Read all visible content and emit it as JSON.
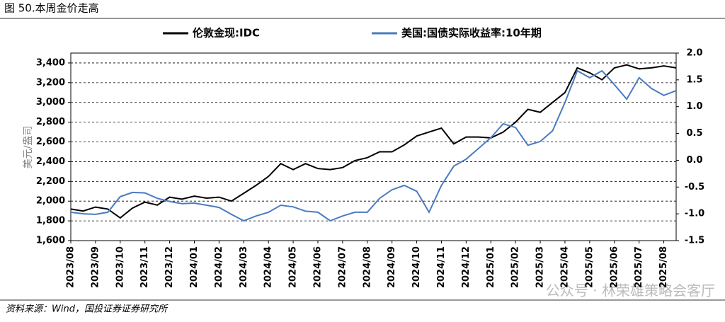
{
  "chart_data": {
    "type": "line",
    "title": "图 50.本周金价走高",
    "y_label": "美元/盎司",
    "source": "资料来源：Wind，国投证券证券研究所",
    "watermark": "公众号 · 林荣雄策略会客厅",
    "categories": [
      "2023/08",
      null,
      "2023/09",
      null,
      "2023/10",
      null,
      "2023/11",
      null,
      "2023/12",
      null,
      "2024/01",
      null,
      "2024/02",
      null,
      "2024/03",
      null,
      "2024/04",
      null,
      "2024/05",
      null,
      "2024/06",
      null,
      "2024/07",
      null,
      "2024/08",
      null,
      "2024/09",
      null,
      "2024/10",
      null,
      "2024/11",
      null,
      "2024/12",
      null,
      "2025/01",
      null,
      "2025/02",
      null,
      "2025/03",
      null,
      "2025/04",
      null,
      "2025/05",
      null,
      "2025/06",
      null,
      "2025/07",
      null,
      "2025/08",
      null
    ],
    "series": [
      {
        "name": "伦敦金现:IDC",
        "color": "#000000",
        "axis": "y",
        "values": [
          1920,
          1900,
          1940,
          1920,
          1830,
          1930,
          1990,
          1960,
          2040,
          2020,
          2050,
          2030,
          2040,
          2000,
          2080,
          2160,
          2250,
          2380,
          2320,
          2380,
          2330,
          2320,
          2340,
          2410,
          2440,
          2500,
          2500,
          2570,
          2660,
          2700,
          2740,
          2580,
          2650,
          2650,
          2640,
          2700,
          2800,
          2930,
          2900,
          3000,
          3100,
          3350,
          3300,
          3230,
          3350,
          3380,
          3340,
          3350,
          3370,
          3350
        ]
      },
      {
        "name": "美国:国债实际收益率:10年期",
        "color": "#4a7bc2",
        "axis": "y2",
        "values": [
          -0.97,
          -1.0,
          -1.01,
          -0.97,
          -0.68,
          -0.6,
          -0.61,
          -0.71,
          -0.77,
          -0.81,
          -0.8,
          -0.84,
          -0.88,
          -1.01,
          -1.13,
          -1.04,
          -0.97,
          -0.84,
          -0.87,
          -0.95,
          -0.97,
          -1.13,
          -1.04,
          -0.97,
          -0.97,
          -0.71,
          -0.55,
          -0.47,
          -0.58,
          -0.97,
          -0.47,
          -0.11,
          0.02,
          0.22,
          0.42,
          0.68,
          0.61,
          0.28,
          0.35,
          0.55,
          1.08,
          1.67,
          1.54,
          1.67,
          1.41,
          1.14,
          1.54,
          1.34,
          1.21,
          1.3
        ]
      }
    ],
    "ylim": [
      1600,
      3500
    ],
    "yticks": [
      {
        "value": 1600,
        "label": "1,600"
      },
      {
        "value": 1800,
        "label": "1,800"
      },
      {
        "value": 2000,
        "label": "2,000"
      },
      {
        "value": 2200,
        "label": "2,200"
      },
      {
        "value": 2400,
        "label": "2,400"
      },
      {
        "value": 2600,
        "label": "2,600"
      },
      {
        "value": 2800,
        "label": "2,800"
      },
      {
        "value": 3000,
        "label": "3,000"
      },
      {
        "value": 3200,
        "label": "3,200"
      },
      {
        "value": 3400,
        "label": "3,400"
      }
    ],
    "y2lim": [
      -1.5,
      2.0
    ],
    "y2ticks": [
      -1.5,
      {
        "value": -1,
        "label": "-1.0"
      },
      -0.5,
      {
        "value": 0,
        "label": "0.0"
      },
      0.5,
      {
        "value": 1,
        "label": "1.0"
      },
      1.5,
      {
        "value": 2,
        "label": "2.0"
      }
    ],
    "grid": true,
    "legend": "top"
  }
}
